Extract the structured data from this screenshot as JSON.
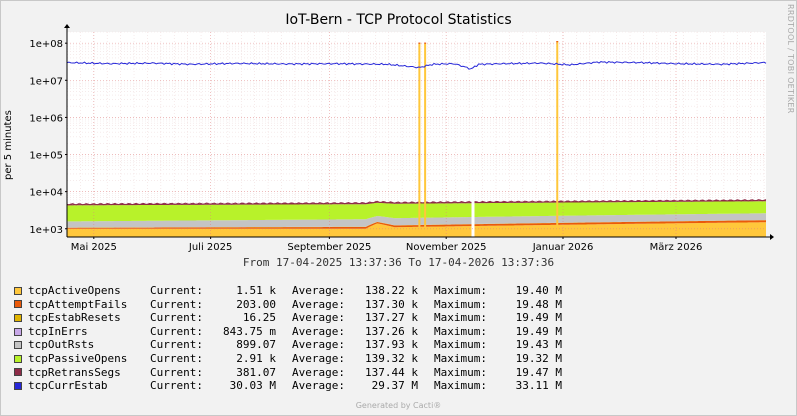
{
  "header": {
    "title": "IoT-Bern - TCP Protocol Statistics",
    "side_credit": "RRDTOOL / TOBI OETIKER"
  },
  "footer": {
    "text": "Generated by Cacti®"
  },
  "range_text": "From 17-04-2025 13:37:36 To 17-04-2026 13:37:36",
  "legend": {
    "current_label": "Current:",
    "average_label": "Average:",
    "maximum_label": "Maximum:",
    "items": [
      {
        "name": "tcpActiveOpens",
        "color": "#ffc73b",
        "current": "1.51 k",
        "average": "138.22 k",
        "maximum": "19.40 M"
      },
      {
        "name": "tcpAttemptFails",
        "color": "#ea5a0a",
        "current": "203.00",
        "average": "137.30 k",
        "maximum": "19.48 M"
      },
      {
        "name": "tcpEstabResets",
        "color": "#e0b400",
        "current": "16.25",
        "average": "137.27 k",
        "maximum": "19.49 M"
      },
      {
        "name": "tcpInErrs",
        "color": "#c8a8e8",
        "current": "843.75 m",
        "average": "137.26 k",
        "maximum": "19.49 M"
      },
      {
        "name": "tcpOutRsts",
        "color": "#c4c4c4",
        "current": "899.07",
        "average": "137.93 k",
        "maximum": "19.43 M"
      },
      {
        "name": "tcpPassiveOpens",
        "color": "#b8f22a",
        "current": "2.91 k",
        "average": "139.32 k",
        "maximum": "19.32 M"
      },
      {
        "name": "tcpRetransSegs",
        "color": "#8e2c48",
        "current": "381.07",
        "average": "137.44 k",
        "maximum": "19.47 M"
      },
      {
        "name": "tcpCurrEstab",
        "color": "#2727d8",
        "current": "30.03 M",
        "average": "29.37 M",
        "maximum": "33.11 M"
      }
    ]
  },
  "chart_data": {
    "type": "area",
    "title": "IoT-Bern - TCP Protocol Statistics",
    "ylabel": "per 5 minutes",
    "y_scale": "log",
    "ylim": [
      600,
      200000000
    ],
    "yticks": [
      1000,
      10000,
      100000,
      1000000,
      10000000,
      100000000
    ],
    "ytick_labels": [
      "1e+03",
      "1e+04",
      "1e+05",
      "1e+06",
      "1e+07",
      "1e+08"
    ],
    "xlim": [
      "2025-04-17",
      "2026-04-17"
    ],
    "xticks": [
      {
        "date": "2025-05-01",
        "label": "Mai 2025"
      },
      {
        "date": "2025-07-01",
        "label": "Juli 2025"
      },
      {
        "date": "2025-09-01",
        "label": "September 2025"
      },
      {
        "date": "2025-11-01",
        "label": "November 2025"
      },
      {
        "date": "2026-01-01",
        "label": "Januar 2026"
      },
      {
        "date": "2026-03-01",
        "label": "März 2026"
      }
    ],
    "grid": true,
    "stack_series": [
      {
        "name": "tcpActiveOpens",
        "x": [
          "2025-04-17",
          "2025-09-20",
          "2025-09-26",
          "2025-10-05",
          "2026-04-17"
        ],
        "values": [
          1000,
          1000,
          1400,
          1100,
          1500
        ]
      },
      {
        "name": "tcpAttemptFails",
        "x": [
          "2025-04-17",
          "2026-04-17"
        ],
        "values": [
          60,
          200
        ]
      },
      {
        "name": "tcpEstabResets",
        "x": [
          "2025-04-17",
          "2026-04-17"
        ],
        "values": [
          15,
          16
        ]
      },
      {
        "name": "tcpInErrs",
        "x": [
          "2025-04-17",
          "2026-04-17"
        ],
        "values": [
          1,
          1
        ]
      },
      {
        "name": "tcpOutRsts",
        "x": [
          "2025-04-17",
          "2026-04-17"
        ],
        "values": [
          500,
          900
        ]
      },
      {
        "name": "tcpPassiveOpens",
        "x": [
          "2025-04-17",
          "2026-04-17"
        ],
        "values": [
          2700,
          2900
        ]
      },
      {
        "name": "tcpRetransSegs",
        "x": [
          "2025-04-17",
          "2026-04-17"
        ],
        "values": [
          300,
          380
        ]
      }
    ],
    "spikes": [
      {
        "x": "2025-10-18",
        "value": 100000000
      },
      {
        "x": "2025-10-21",
        "value": 100000000
      },
      {
        "x": "2025-12-29",
        "value": 110000000
      }
    ],
    "gap": {
      "x": "2025-11-15",
      "value": 10000
    },
    "line_series": {
      "name": "tcpCurrEstab",
      "x": [
        "2025-04-17",
        "2025-05-10",
        "2025-06-01",
        "2025-06-20",
        "2025-07-15",
        "2025-08-10",
        "2025-09-05",
        "2025-10-01",
        "2025-10-18",
        "2025-10-25",
        "2025-11-05",
        "2025-11-14",
        "2025-11-18",
        "2025-12-01",
        "2025-12-20",
        "2026-01-05",
        "2026-01-20",
        "2026-02-10",
        "2026-03-01",
        "2026-03-25",
        "2026-04-17"
      ],
      "values": [
        30000000,
        28000000,
        29000000,
        27000000,
        28500000,
        27500000,
        28000000,
        27000000,
        22000000,
        27000000,
        28000000,
        20000000,
        27000000,
        28000000,
        29000000,
        26000000,
        31000000,
        30000000,
        28000000,
        27000000,
        30000000
      ]
    }
  }
}
